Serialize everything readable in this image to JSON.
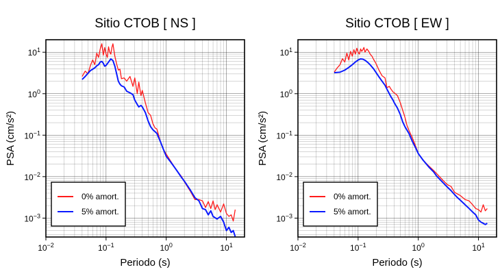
{
  "chart_data": [
    {
      "type": "line",
      "title": "Sitio CTOB [ NS ]",
      "xlabel": "Periodo (s)",
      "ylabel": "PSA (cm/s²)",
      "xscale": "log",
      "yscale": "log",
      "xlim": [
        0.01,
        20
      ],
      "ylim": [
        0.00035,
        20
      ],
      "grid": true,
      "legend_position": "bottom-left",
      "x_ticks": [
        {
          "mant": "10",
          "exp": "−2",
          "value": 0.01
        },
        {
          "mant": "10",
          "exp": "−1",
          "value": 0.1
        },
        {
          "mant": "10",
          "exp": "0",
          "value": 1
        },
        {
          "mant": "10",
          "exp": "1",
          "value": 10
        }
      ],
      "y_ticks": [
        {
          "mant": "10",
          "exp": "−3",
          "value": 0.001
        },
        {
          "mant": "10",
          "exp": "−2",
          "value": 0.01
        },
        {
          "mant": "10",
          "exp": "−1",
          "value": 0.1
        },
        {
          "mant": "10",
          "exp": "0",
          "value": 1
        },
        {
          "mant": "10",
          "exp": "1",
          "value": 10
        }
      ],
      "series": [
        {
          "name": "0% amort.",
          "color": "#ff1a1a",
          "x": [
            0.04,
            0.045,
            0.05,
            0.055,
            0.06,
            0.065,
            0.07,
            0.075,
            0.08,
            0.085,
            0.09,
            0.095,
            0.1,
            0.105,
            0.11,
            0.115,
            0.12,
            0.125,
            0.13,
            0.14,
            0.15,
            0.16,
            0.17,
            0.18,
            0.2,
            0.22,
            0.25,
            0.28,
            0.3,
            0.33,
            0.35,
            0.38,
            0.4,
            0.45,
            0.5,
            0.55,
            0.6,
            0.65,
            0.7,
            0.8,
            0.9,
            1.0,
            1.2,
            1.5,
            1.8,
            2.0,
            2.5,
            3.0,
            3.5,
            4.0,
            4.5,
            5.0,
            5.5,
            6.0,
            6.5,
            7.0,
            8.0,
            9.0,
            10.0,
            11.0,
            12.0,
            13.0,
            14.0
          ],
          "y": [
            2.6,
            3.5,
            3.0,
            4.8,
            6.5,
            5.0,
            9.5,
            7.5,
            12.0,
            16.0,
            8.5,
            13.0,
            9.0,
            7.5,
            13.5,
            10.0,
            9.0,
            13.0,
            16.0,
            8.0,
            5.2,
            3.7,
            3.9,
            2.3,
            2.4,
            2.0,
            2.6,
            1.5,
            2.4,
            1.0,
            1.9,
            0.9,
            1.2,
            0.6,
            0.35,
            0.3,
            0.19,
            0.15,
            0.14,
            0.07,
            0.045,
            0.035,
            0.023,
            0.014,
            0.01,
            0.0075,
            0.0045,
            0.0028,
            0.0028,
            0.0026,
            0.0018,
            0.0025,
            0.0017,
            0.0026,
            0.0016,
            0.0021,
            0.0014,
            0.0022,
            0.0013,
            0.0011,
            0.0012,
            0.00085,
            0.0016
          ]
        },
        {
          "name": "5% amort.",
          "color": "#0a1aff",
          "x": [
            0.04,
            0.045,
            0.05,
            0.055,
            0.06,
            0.065,
            0.07,
            0.075,
            0.08,
            0.085,
            0.09,
            0.095,
            0.1,
            0.11,
            0.12,
            0.13,
            0.14,
            0.15,
            0.16,
            0.17,
            0.18,
            0.2,
            0.22,
            0.25,
            0.28,
            0.3,
            0.33,
            0.35,
            0.38,
            0.4,
            0.45,
            0.5,
            0.55,
            0.6,
            0.7,
            0.8,
            0.9,
            1.0,
            1.2,
            1.5,
            1.8,
            2.0,
            2.5,
            3.0,
            3.5,
            4.0,
            4.5,
            5.0,
            5.5,
            6.0,
            7.0,
            8.0,
            9.0,
            10.0,
            11.0,
            12.0,
            13.0,
            14.0
          ],
          "y": [
            2.2,
            2.6,
            3.1,
            3.6,
            3.9,
            4.2,
            4.7,
            5.0,
            5.8,
            6.0,
            5.4,
            4.6,
            4.8,
            5.8,
            6.9,
            6.3,
            4.6,
            3.0,
            2.0,
            1.7,
            1.55,
            1.45,
            1.15,
            1.05,
            0.95,
            0.7,
            0.55,
            0.48,
            0.52,
            0.48,
            0.35,
            0.22,
            0.16,
            0.135,
            0.11,
            0.07,
            0.045,
            0.031,
            0.022,
            0.014,
            0.0095,
            0.0078,
            0.0048,
            0.0031,
            0.0026,
            0.0017,
            0.0016,
            0.0012,
            0.0015,
            0.0011,
            0.00095,
            0.0011,
            0.0008,
            0.0005,
            0.0006,
            0.00045,
            0.0005,
            0.00036
          ]
        }
      ]
    },
    {
      "type": "line",
      "title": "Sitio CTOB [ EW ]",
      "xlabel": "Periodo (s)",
      "ylabel": "PSA (cm/s²)",
      "xscale": "log",
      "yscale": "log",
      "xlim": [
        0.01,
        20
      ],
      "ylim": [
        0.00035,
        20
      ],
      "grid": true,
      "legend_position": "bottom-left",
      "x_ticks": [
        {
          "mant": "10",
          "exp": "−2",
          "value": 0.01
        },
        {
          "mant": "10",
          "exp": "−1",
          "value": 0.1
        },
        {
          "mant": "10",
          "exp": "0",
          "value": 1
        },
        {
          "mant": "10",
          "exp": "1",
          "value": 10
        }
      ],
      "y_ticks": [
        {
          "mant": "10",
          "exp": "−3",
          "value": 0.001
        },
        {
          "mant": "10",
          "exp": "−2",
          "value": 0.01
        },
        {
          "mant": "10",
          "exp": "−1",
          "value": 0.1
        },
        {
          "mant": "10",
          "exp": "0",
          "value": 1
        },
        {
          "mant": "10",
          "exp": "1",
          "value": 10
        }
      ],
      "series": [
        {
          "name": "0% amort.",
          "color": "#ff1a1a",
          "x": [
            0.04,
            0.045,
            0.05,
            0.055,
            0.06,
            0.065,
            0.07,
            0.075,
            0.08,
            0.085,
            0.09,
            0.095,
            0.1,
            0.105,
            0.11,
            0.115,
            0.12,
            0.125,
            0.13,
            0.14,
            0.15,
            0.16,
            0.17,
            0.18,
            0.2,
            0.22,
            0.25,
            0.28,
            0.3,
            0.33,
            0.35,
            0.38,
            0.4,
            0.45,
            0.5,
            0.55,
            0.6,
            0.65,
            0.7,
            0.8,
            0.9,
            1.0,
            1.2,
            1.5,
            1.8,
            2.0,
            2.5,
            3.0,
            3.5,
            4.0,
            4.5,
            5.0,
            6.0,
            7.0,
            8.0,
            9.0,
            10.0,
            11.0,
            12.0,
            13.0,
            14.0
          ],
          "y": [
            3.3,
            4.2,
            5.0,
            7.0,
            5.8,
            9.5,
            6.5,
            10.5,
            8.0,
            11.5,
            9.0,
            12.5,
            10.0,
            9.0,
            12.0,
            10.5,
            11.5,
            13.0,
            10.0,
            12.0,
            10.5,
            8.8,
            8.0,
            6.8,
            5.2,
            3.8,
            2.7,
            2.4,
            1.4,
            1.5,
            1.3,
            1.1,
            1.05,
            0.9,
            0.62,
            0.4,
            0.27,
            0.17,
            0.13,
            0.085,
            0.055,
            0.036,
            0.025,
            0.018,
            0.014,
            0.012,
            0.0085,
            0.0065,
            0.0058,
            0.0042,
            0.0038,
            0.0035,
            0.0028,
            0.0026,
            0.0021,
            0.0017,
            0.0016,
            0.0014,
            0.0021,
            0.0015,
            0.0017
          ]
        },
        {
          "name": "5% amort.",
          "color": "#0a1aff",
          "x": [
            0.04,
            0.05,
            0.06,
            0.07,
            0.08,
            0.09,
            0.1,
            0.11,
            0.12,
            0.13,
            0.14,
            0.15,
            0.16,
            0.18,
            0.2,
            0.22,
            0.25,
            0.28,
            0.3,
            0.33,
            0.35,
            0.38,
            0.4,
            0.45,
            0.5,
            0.55,
            0.6,
            0.7,
            0.8,
            0.9,
            1.0,
            1.2,
            1.5,
            1.8,
            2.0,
            2.5,
            3.0,
            3.5,
            4.0,
            4.5,
            5.0,
            6.0,
            7.0,
            8.0,
            9.0,
            10.0,
            11.0,
            12.0,
            13.0,
            14.0
          ],
          "y": [
            3.2,
            3.3,
            3.7,
            4.3,
            5.0,
            5.8,
            6.5,
            6.9,
            6.8,
            6.4,
            5.9,
            5.4,
            4.9,
            4.0,
            3.2,
            2.6,
            2.0,
            1.6,
            1.3,
            1.0,
            0.85,
            0.7,
            0.6,
            0.45,
            0.32,
            0.21,
            0.16,
            0.11,
            0.07,
            0.05,
            0.036,
            0.025,
            0.017,
            0.013,
            0.0105,
            0.0075,
            0.0057,
            0.0046,
            0.0037,
            0.0031,
            0.0027,
            0.0021,
            0.0017,
            0.0014,
            0.0012,
            0.0009,
            0.0008,
            0.00075,
            0.0007,
            0.00075
          ]
        }
      ]
    }
  ]
}
